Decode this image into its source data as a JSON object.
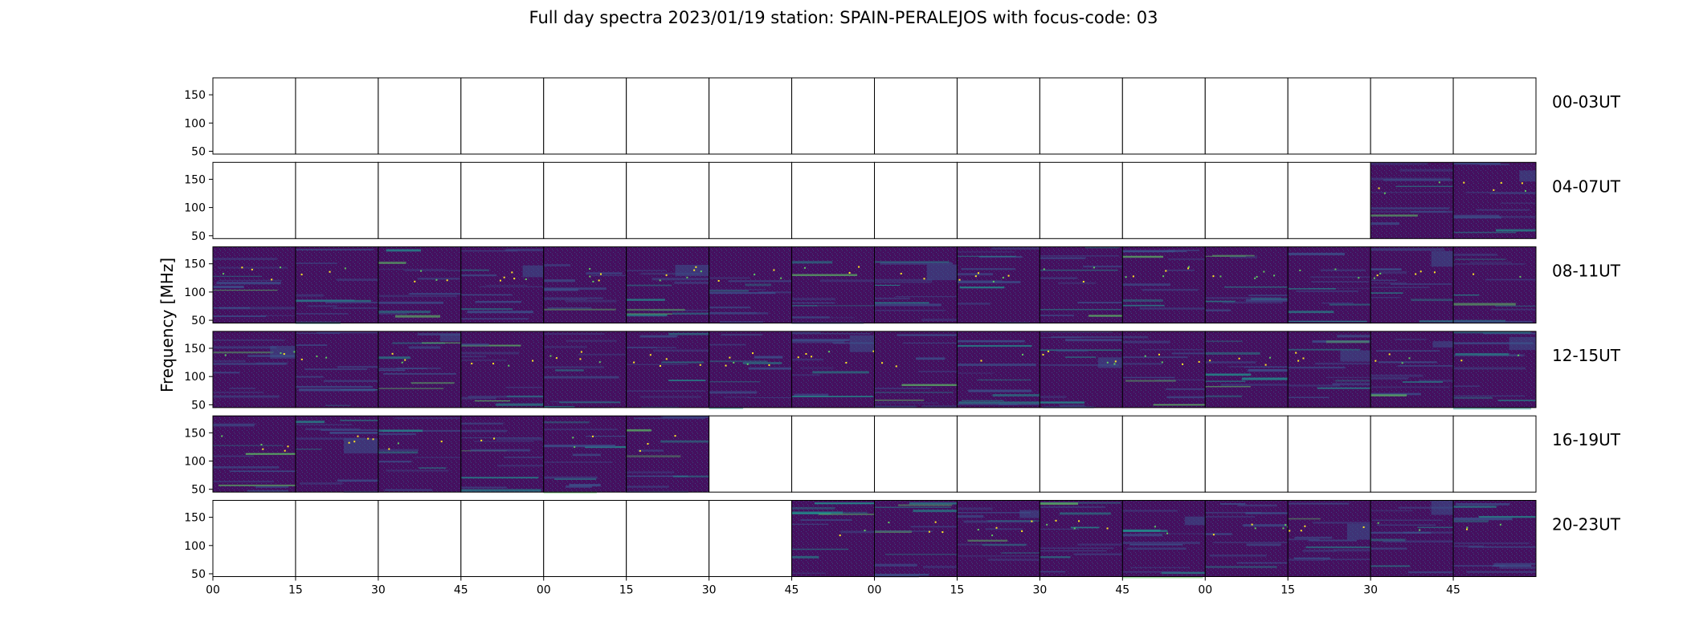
{
  "chart_data": {
    "type": "heatmap",
    "title": "Full day spectra 2023/01/19 station: SPAIN-PERALEJOS with focus-code: 03",
    "ylabel": "Frequency [MHz]",
    "xlabel": "",
    "ylim": [
      45,
      180
    ],
    "y_ticks": [
      50,
      100,
      150
    ],
    "x_tick_labels": [
      "00",
      "15",
      "30",
      "45",
      "00",
      "15",
      "30",
      "45",
      "00",
      "15",
      "30",
      "45",
      "00",
      "15",
      "30",
      "45"
    ],
    "panels_per_row": 16,
    "rows": [
      {
        "label": "00-03UT",
        "active_panels": []
      },
      {
        "label": "04-07UT",
        "active_panels": [
          14,
          15
        ]
      },
      {
        "label": "08-11UT",
        "active_panels": [
          0,
          1,
          2,
          3,
          4,
          5,
          6,
          7,
          8,
          9,
          10,
          11,
          12,
          13,
          14,
          15
        ]
      },
      {
        "label": "12-15UT",
        "active_panels": [
          0,
          1,
          2,
          3,
          4,
          5,
          6,
          7,
          8,
          9,
          10,
          11,
          12,
          13,
          14,
          15
        ]
      },
      {
        "label": "16-19UT",
        "active_panels": [
          0,
          1,
          2,
          3,
          4,
          5
        ]
      },
      {
        "label": "20-23UT",
        "active_panels": [
          7,
          8,
          9,
          10,
          11,
          12,
          13,
          14,
          15
        ]
      }
    ],
    "colormap": [
      "#440154",
      "#3b528b",
      "#21918c",
      "#5ec962",
      "#fde725"
    ],
    "background_color": "#45105f"
  }
}
